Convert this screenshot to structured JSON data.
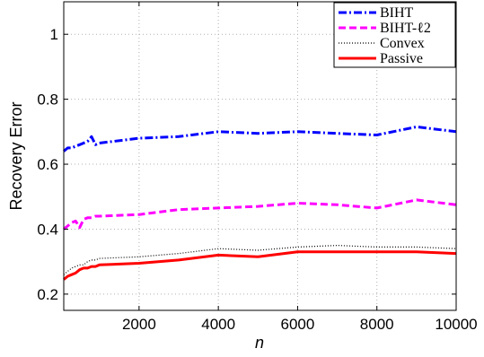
{
  "chart_data": {
    "type": "line",
    "xlabel": "n",
    "ylabel": "Recovery Error",
    "xlim": [
      100,
      10000
    ],
    "ylim": [
      0.15,
      1.1
    ],
    "xticks": [
      2000,
      4000,
      6000,
      8000,
      10000
    ],
    "yticks": [
      0.2,
      0.4,
      0.6,
      0.8,
      1
    ],
    "ytick_labels": [
      "0.2",
      "0.4",
      "0.6",
      "0.8",
      "1"
    ],
    "grid": true,
    "legend_position": "top-right",
    "series": [
      {
        "name": "BIHT",
        "color": "#0000ff",
        "style": "dashdot",
        "x": [
          100,
          200,
          300,
          400,
          500,
          600,
          700,
          800,
          900,
          1000,
          2000,
          3000,
          4000,
          5000,
          6000,
          7000,
          8000,
          9000,
          10000
        ],
        "y": [
          0.64,
          0.65,
          0.65,
          0.655,
          0.66,
          0.665,
          0.67,
          0.685,
          0.66,
          0.665,
          0.68,
          0.685,
          0.7,
          0.695,
          0.7,
          0.695,
          0.69,
          0.715,
          0.7
        ]
      },
      {
        "name": "BIHT-ℓ2",
        "color": "#ff00ff",
        "style": "dashed",
        "x": [
          100,
          200,
          300,
          400,
          500,
          600,
          700,
          800,
          900,
          1000,
          2000,
          3000,
          4000,
          5000,
          6000,
          7000,
          8000,
          9000,
          10000
        ],
        "y": [
          0.4,
          0.41,
          0.42,
          0.425,
          0.405,
          0.43,
          0.435,
          0.435,
          0.44,
          0.44,
          0.445,
          0.46,
          0.465,
          0.47,
          0.48,
          0.475,
          0.465,
          0.49,
          0.475
        ]
      },
      {
        "name": "Convex",
        "color": "#000000",
        "style": "dotted",
        "x": [
          100,
          200,
          300,
          400,
          500,
          600,
          700,
          800,
          900,
          1000,
          2000,
          3000,
          4000,
          5000,
          6000,
          7000,
          8000,
          9000,
          10000
        ],
        "y": [
          0.26,
          0.27,
          0.28,
          0.285,
          0.29,
          0.29,
          0.3,
          0.305,
          0.305,
          0.31,
          0.315,
          0.325,
          0.34,
          0.335,
          0.345,
          0.35,
          0.345,
          0.345,
          0.34
        ]
      },
      {
        "name": "Passive",
        "color": "#ff0000",
        "style": "solid",
        "x": [
          100,
          200,
          300,
          400,
          500,
          600,
          700,
          800,
          900,
          1000,
          2000,
          3000,
          4000,
          5000,
          6000,
          7000,
          8000,
          9000,
          10000
        ],
        "y": [
          0.245,
          0.255,
          0.26,
          0.265,
          0.275,
          0.28,
          0.28,
          0.285,
          0.285,
          0.29,
          0.295,
          0.305,
          0.32,
          0.315,
          0.33,
          0.33,
          0.33,
          0.33,
          0.325
        ]
      }
    ]
  }
}
